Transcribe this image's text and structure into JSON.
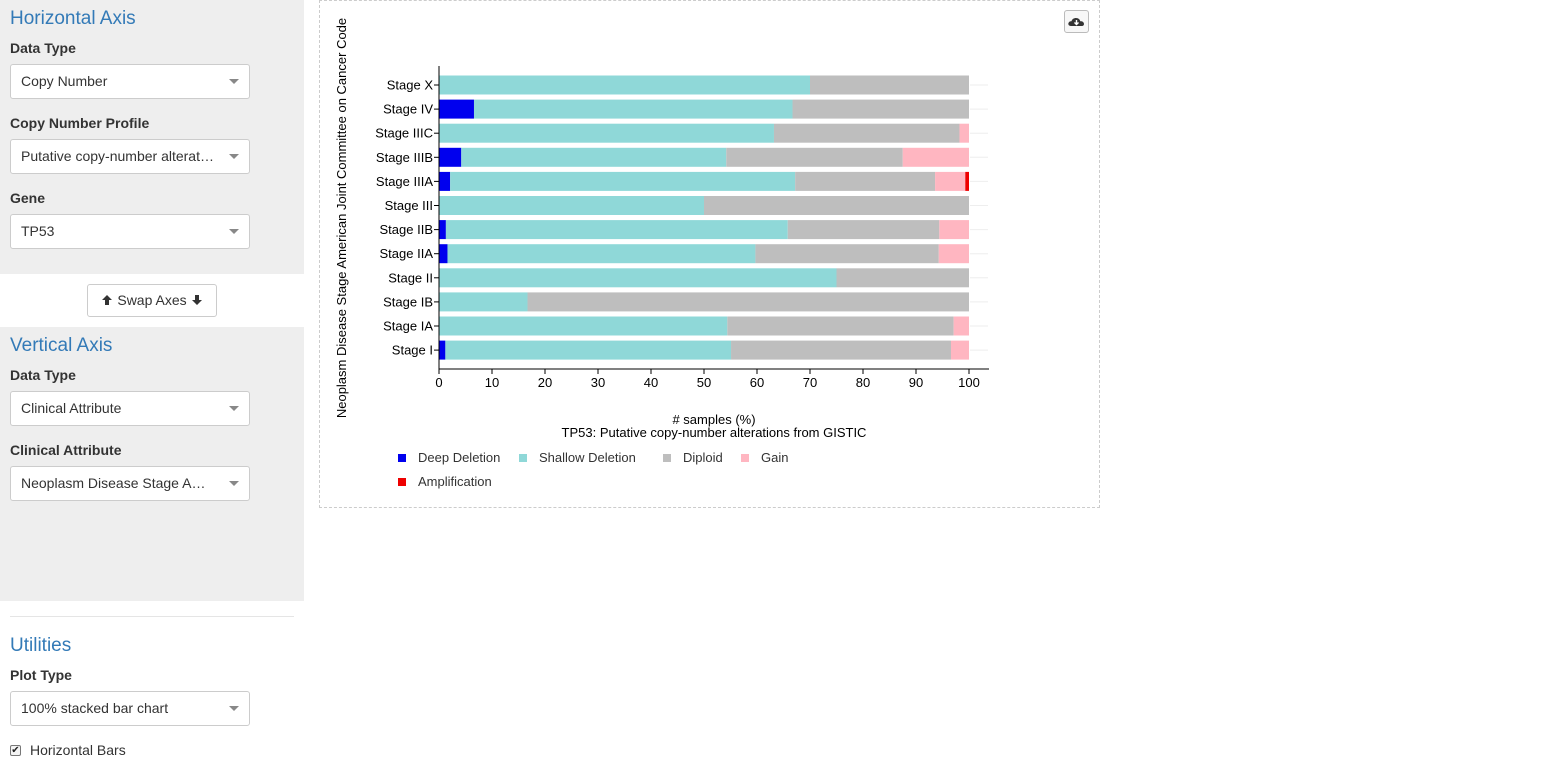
{
  "horizontal_axis": {
    "title": "Horizontal Axis",
    "data_type_label": "Data Type",
    "data_type_value": "Copy Number",
    "profile_label": "Copy Number Profile",
    "profile_value": "Putative copy-number alterations from GISTIC",
    "gene_label": "Gene",
    "gene_value": "TP53"
  },
  "swap_button": {
    "label": "Swap Axes"
  },
  "vertical_axis": {
    "title": "Vertical Axis",
    "data_type_label": "Data Type",
    "data_type_value": "Clinical Attribute",
    "attribute_label": "Clinical Attribute",
    "attribute_value": "Neoplasm Disease Stage American Joint Committee on Cancer Code"
  },
  "utilities": {
    "title": "Utilities",
    "plot_type_label": "Plot Type",
    "plot_type_value": "100% stacked bar chart",
    "horizontal_bars_label": "Horizontal Bars",
    "horizontal_bars_checked": true
  },
  "icons": {
    "download": "cloud-download-icon",
    "swap_up": "arrow-up-icon",
    "swap_down": "arrow-down-icon"
  },
  "chart_data": {
    "type": "bar",
    "orientation": "horizontal",
    "stacked": "100%",
    "title": "TP53: Putative copy-number alterations from GISTIC",
    "xlabel": "# samples (%)",
    "ylabel": "Neoplasm Disease Stage American Joint Committee on Cancer Code",
    "xlim": [
      0,
      100
    ],
    "xticks": [
      0,
      10,
      20,
      30,
      40,
      50,
      60,
      70,
      80,
      90,
      100
    ],
    "legend_position": "bottom",
    "categories": [
      "Stage X",
      "Stage IV",
      "Stage IIIC",
      "Stage IIIB",
      "Stage IIIA",
      "Stage III",
      "Stage IIB",
      "Stage IIA",
      "Stage II",
      "Stage IB",
      "Stage IA",
      "Stage I"
    ],
    "series": [
      {
        "name": "Deep Deletion",
        "color": "#0000ee",
        "values": [
          0,
          6.6,
          0,
          4.2,
          2.1,
          0,
          1.3,
          1.6,
          0,
          0,
          0,
          1.2
        ]
      },
      {
        "name": "Shallow Deletion",
        "color": "#8fd8d8",
        "values": [
          70.0,
          60.1,
          63.2,
          50.0,
          65.1,
          50.0,
          64.5,
          58.1,
          75.0,
          16.7,
          54.4,
          53.9
        ]
      },
      {
        "name": "Diploid",
        "color": "#bebebe",
        "values": [
          30.0,
          33.3,
          35.0,
          33.3,
          26.4,
          50.0,
          28.6,
          34.6,
          25.0,
          83.3,
          42.7,
          41.5
        ]
      },
      {
        "name": "Gain",
        "color": "#ffb6c1",
        "values": [
          0,
          0,
          1.8,
          12.5,
          5.7,
          0,
          5.6,
          5.7,
          0,
          0,
          2.9,
          3.4
        ]
      },
      {
        "name": "Amplification",
        "color": "#ee0000",
        "values": [
          0,
          0,
          0,
          0,
          0.7,
          0,
          0,
          0,
          0,
          0,
          0,
          0
        ]
      }
    ]
  }
}
